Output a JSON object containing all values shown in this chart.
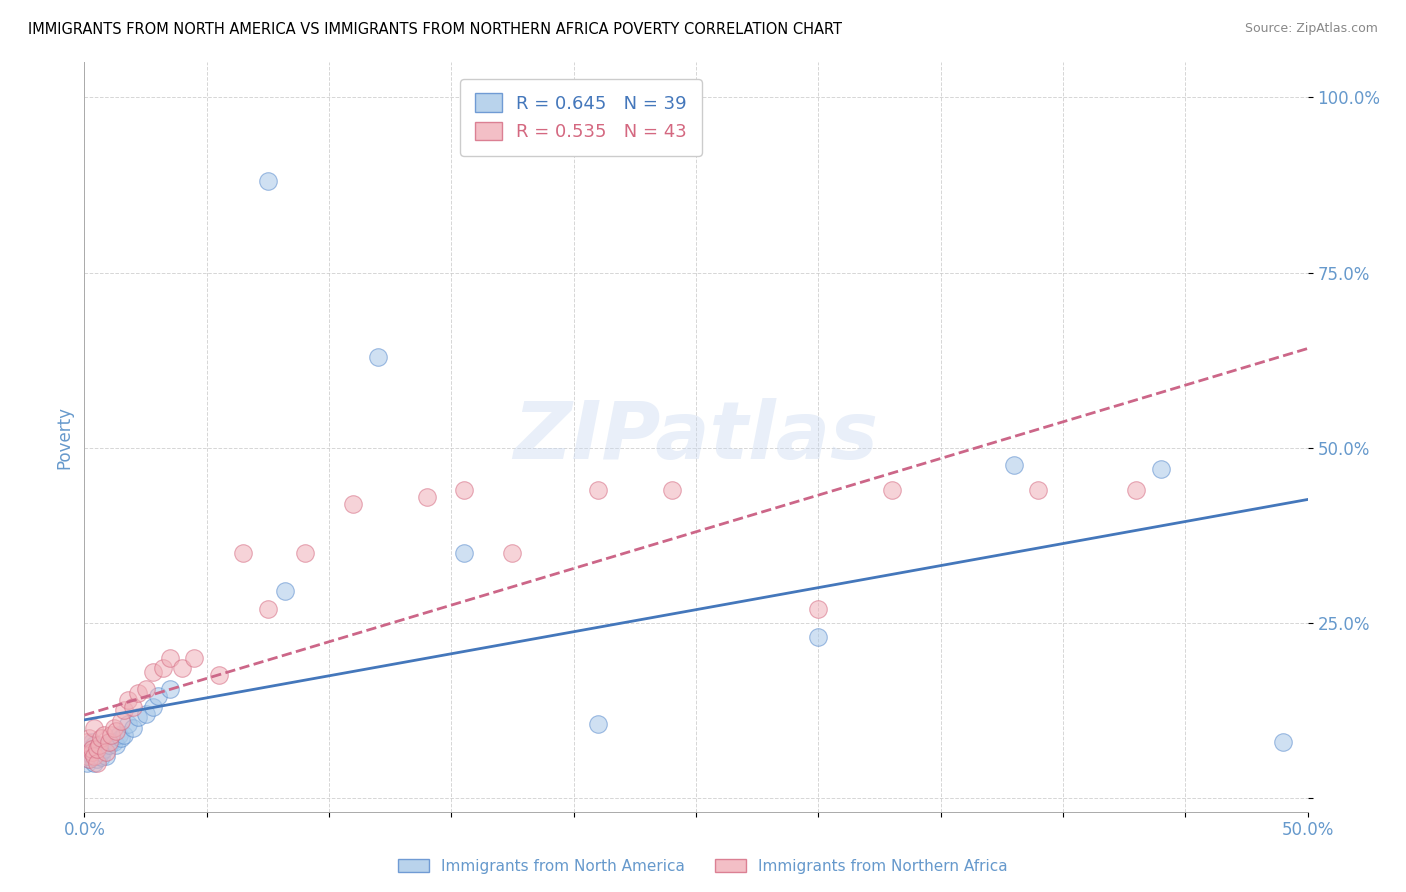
{
  "title": "IMMIGRANTS FROM NORTH AMERICA VS IMMIGRANTS FROM NORTHERN AFRICA POVERTY CORRELATION CHART",
  "source": "Source: ZipAtlas.com",
  "ylabel": "Poverty",
  "xlim": [
    0.0,
    0.5
  ],
  "ylim": [
    -0.02,
    1.05
  ],
  "xtick_positions": [
    0.0,
    0.05,
    0.1,
    0.15,
    0.2,
    0.25,
    0.3,
    0.35,
    0.4,
    0.45,
    0.5
  ],
  "xtick_labels_show": {
    "0.0": "0.0%",
    "0.5": "50.0%"
  },
  "ytick_positions": [
    0.0,
    0.25,
    0.5,
    0.75,
    1.0
  ],
  "ytick_labels": [
    "",
    "25.0%",
    "50.0%",
    "75.0%",
    "100.0%"
  ],
  "blue_color": "#a8c8e8",
  "pink_color": "#f0b0b8",
  "blue_edge_color": "#5588cc",
  "pink_edge_color": "#d46880",
  "blue_line_color": "#4477bb",
  "pink_line_color": "#cc6688",
  "tick_color": "#6699cc",
  "R_blue": 0.645,
  "N_blue": 39,
  "R_pink": 0.535,
  "N_pink": 43,
  "legend_label_blue": "Immigrants from North America",
  "legend_label_pink": "Immigrants from Northern Africa",
  "watermark": "ZIPatlas",
  "blue_x": [
    0.001,
    0.001,
    0.002,
    0.002,
    0.003,
    0.003,
    0.004,
    0.004,
    0.005,
    0.005,
    0.006,
    0.006,
    0.007,
    0.007,
    0.008,
    0.009,
    0.01,
    0.011,
    0.012,
    0.013,
    0.014,
    0.015,
    0.016,
    0.018,
    0.02,
    0.022,
    0.025,
    0.028,
    0.03,
    0.035,
    0.075,
    0.082,
    0.12,
    0.155,
    0.21,
    0.3,
    0.38,
    0.44,
    0.49
  ],
  "blue_y": [
    0.05,
    0.065,
    0.055,
    0.07,
    0.06,
    0.08,
    0.05,
    0.075,
    0.055,
    0.065,
    0.07,
    0.06,
    0.058,
    0.065,
    0.07,
    0.06,
    0.075,
    0.08,
    0.08,
    0.075,
    0.09,
    0.085,
    0.09,
    0.105,
    0.1,
    0.115,
    0.12,
    0.13,
    0.145,
    0.155,
    0.88,
    0.295,
    0.63,
    0.35,
    0.105,
    0.23,
    0.475,
    0.47,
    0.08
  ],
  "pink_x": [
    0.001,
    0.001,
    0.002,
    0.002,
    0.003,
    0.003,
    0.004,
    0.004,
    0.005,
    0.005,
    0.006,
    0.007,
    0.008,
    0.009,
    0.01,
    0.011,
    0.012,
    0.013,
    0.015,
    0.016,
    0.018,
    0.02,
    0.022,
    0.025,
    0.028,
    0.032,
    0.035,
    0.04,
    0.045,
    0.055,
    0.065,
    0.075,
    0.09,
    0.11,
    0.14,
    0.155,
    0.175,
    0.21,
    0.24,
    0.3,
    0.33,
    0.39,
    0.43
  ],
  "pink_y": [
    0.06,
    0.08,
    0.055,
    0.085,
    0.065,
    0.07,
    0.06,
    0.1,
    0.05,
    0.07,
    0.075,
    0.085,
    0.09,
    0.065,
    0.08,
    0.09,
    0.1,
    0.095,
    0.11,
    0.125,
    0.14,
    0.13,
    0.15,
    0.155,
    0.18,
    0.185,
    0.2,
    0.185,
    0.2,
    0.175,
    0.35,
    0.27,
    0.35,
    0.42,
    0.43,
    0.44,
    0.35,
    0.44,
    0.44,
    0.27,
    0.44,
    0.44,
    0.44
  ]
}
